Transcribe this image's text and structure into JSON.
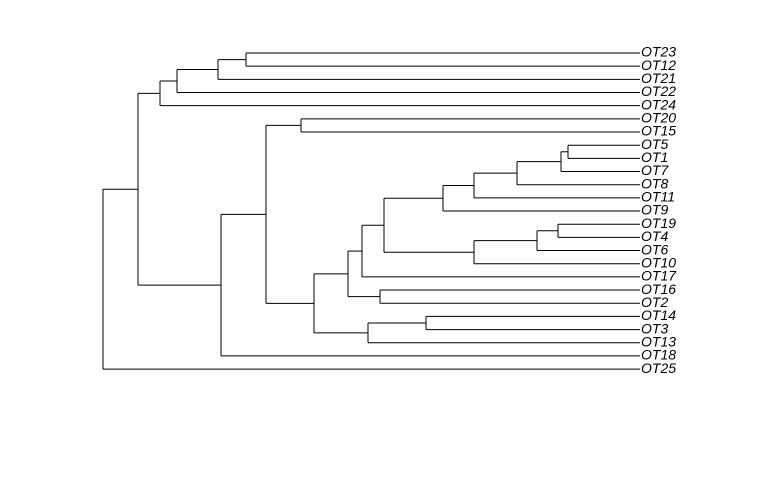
{
  "tree": {
    "leaves": [
      "OT23",
      "OT12",
      "OT21",
      "OT22",
      "OT24",
      "OT20",
      "OT15",
      "OT5",
      "OT1",
      "OT7",
      "OT8",
      "OT11",
      "OT9",
      "OT19",
      "OT4",
      "OT6",
      "OT10",
      "OT17",
      "OT16",
      "OT2",
      "OT14",
      "OT3",
      "OT13",
      "OT18",
      "OT25"
    ]
  }
}
